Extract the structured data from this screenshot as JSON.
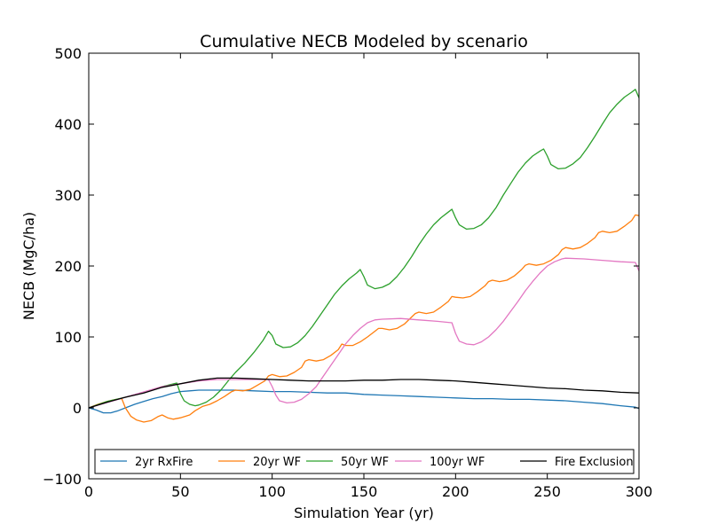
{
  "chart_data": {
    "type": "line",
    "title": "Cumulative NECB Modeled by scenario",
    "xlabel": "Simulation Year (yr)",
    "ylabel": "NECB (MgC/ha)",
    "xlim": [
      0,
      300
    ],
    "ylim": [
      -100,
      500
    ],
    "xticks": [
      "0",
      "50",
      "100",
      "150",
      "200",
      "250",
      "300"
    ],
    "yticks": [
      "−100",
      "0",
      "100",
      "200",
      "300",
      "400",
      "500"
    ],
    "grid": false,
    "legend_position": "bottom",
    "series": [
      {
        "name": "2yr RxFire",
        "color": "#1f77b4",
        "points": [
          [
            0,
            0
          ],
          [
            4,
            -3
          ],
          [
            8,
            -7
          ],
          [
            12,
            -7
          ],
          [
            16,
            -4
          ],
          [
            20,
            0
          ],
          [
            25,
            5
          ],
          [
            30,
            9
          ],
          [
            35,
            13
          ],
          [
            40,
            16
          ],
          [
            45,
            20
          ],
          [
            50,
            23
          ],
          [
            55,
            24
          ],
          [
            60,
            25
          ],
          [
            70,
            25
          ],
          [
            80,
            25
          ],
          [
            90,
            24
          ],
          [
            100,
            23
          ],
          [
            110,
            23
          ],
          [
            120,
            22
          ],
          [
            130,
            21
          ],
          [
            140,
            21
          ],
          [
            150,
            19
          ],
          [
            160,
            18
          ],
          [
            170,
            17
          ],
          [
            180,
            16
          ],
          [
            190,
            15
          ],
          [
            200,
            14
          ],
          [
            210,
            13
          ],
          [
            220,
            13
          ],
          [
            230,
            12
          ],
          [
            240,
            12
          ],
          [
            250,
            11
          ],
          [
            260,
            10
          ],
          [
            270,
            8
          ],
          [
            280,
            6
          ],
          [
            290,
            3
          ],
          [
            298,
            1
          ],
          [
            300,
            -1
          ]
        ]
      },
      {
        "name": "20yr WF",
        "color": "#ff7f0e",
        "points": [
          [
            0,
            0
          ],
          [
            5,
            5
          ],
          [
            10,
            9
          ],
          [
            15,
            12
          ],
          [
            18,
            13
          ],
          [
            20,
            0
          ],
          [
            23,
            -12
          ],
          [
            26,
            -17
          ],
          [
            30,
            -20
          ],
          [
            34,
            -18
          ],
          [
            38,
            -12
          ],
          [
            40,
            -10
          ],
          [
            43,
            -14
          ],
          [
            46,
            -16
          ],
          [
            50,
            -14
          ],
          [
            55,
            -10
          ],
          [
            58,
            -4
          ],
          [
            62,
            2
          ],
          [
            66,
            5
          ],
          [
            70,
            10
          ],
          [
            74,
            16
          ],
          [
            78,
            23
          ],
          [
            80,
            25
          ],
          [
            84,
            24
          ],
          [
            88,
            26
          ],
          [
            92,
            32
          ],
          [
            96,
            38
          ],
          [
            98,
            45
          ],
          [
            100,
            47
          ],
          [
            104,
            44
          ],
          [
            108,
            45
          ],
          [
            112,
            50
          ],
          [
            116,
            57
          ],
          [
            118,
            66
          ],
          [
            120,
            68
          ],
          [
            124,
            66
          ],
          [
            128,
            68
          ],
          [
            132,
            74
          ],
          [
            136,
            82
          ],
          [
            138,
            90
          ],
          [
            140,
            88
          ],
          [
            144,
            88
          ],
          [
            148,
            93
          ],
          [
            152,
            100
          ],
          [
            156,
            108
          ],
          [
            158,
            112
          ],
          [
            160,
            112
          ],
          [
            164,
            110
          ],
          [
            168,
            112
          ],
          [
            172,
            118
          ],
          [
            176,
            128
          ],
          [
            178,
            133
          ],
          [
            180,
            135
          ],
          [
            184,
            133
          ],
          [
            188,
            135
          ],
          [
            192,
            142
          ],
          [
            196,
            150
          ],
          [
            198,
            157
          ],
          [
            200,
            156
          ],
          [
            204,
            155
          ],
          [
            208,
            157
          ],
          [
            212,
            164
          ],
          [
            216,
            172
          ],
          [
            218,
            178
          ],
          [
            220,
            180
          ],
          [
            224,
            178
          ],
          [
            228,
            180
          ],
          [
            232,
            186
          ],
          [
            236,
            195
          ],
          [
            238,
            201
          ],
          [
            240,
            203
          ],
          [
            244,
            201
          ],
          [
            248,
            203
          ],
          [
            252,
            208
          ],
          [
            256,
            216
          ],
          [
            258,
            223
          ],
          [
            260,
            226
          ],
          [
            264,
            224
          ],
          [
            268,
            226
          ],
          [
            272,
            232
          ],
          [
            276,
            240
          ],
          [
            278,
            247
          ],
          [
            280,
            249
          ],
          [
            284,
            247
          ],
          [
            288,
            249
          ],
          [
            292,
            256
          ],
          [
            296,
            264
          ],
          [
            298,
            272
          ],
          [
            300,
            271
          ]
        ]
      },
      {
        "name": "50yr WF",
        "color": "#2ca02c",
        "points": [
          [
            0,
            0
          ],
          [
            10,
            9
          ],
          [
            20,
            15
          ],
          [
            30,
            22
          ],
          [
            40,
            30
          ],
          [
            48,
            35
          ],
          [
            50,
            20
          ],
          [
            52,
            10
          ],
          [
            55,
            5
          ],
          [
            58,
            3
          ],
          [
            60,
            4
          ],
          [
            64,
            8
          ],
          [
            68,
            15
          ],
          [
            72,
            25
          ],
          [
            76,
            38
          ],
          [
            80,
            50
          ],
          [
            85,
            63
          ],
          [
            90,
            78
          ],
          [
            95,
            95
          ],
          [
            98,
            108
          ],
          [
            100,
            102
          ],
          [
            102,
            90
          ],
          [
            106,
            85
          ],
          [
            110,
            86
          ],
          [
            114,
            92
          ],
          [
            118,
            102
          ],
          [
            122,
            115
          ],
          [
            126,
            130
          ],
          [
            130,
            145
          ],
          [
            134,
            160
          ],
          [
            138,
            172
          ],
          [
            142,
            182
          ],
          [
            146,
            190
          ],
          [
            148,
            195
          ],
          [
            150,
            185
          ],
          [
            152,
            173
          ],
          [
            156,
            168
          ],
          [
            160,
            170
          ],
          [
            164,
            175
          ],
          [
            168,
            185
          ],
          [
            172,
            198
          ],
          [
            176,
            213
          ],
          [
            180,
            230
          ],
          [
            184,
            245
          ],
          [
            188,
            258
          ],
          [
            192,
            268
          ],
          [
            196,
            276
          ],
          [
            198,
            280
          ],
          [
            200,
            268
          ],
          [
            202,
            258
          ],
          [
            206,
            252
          ],
          [
            210,
            253
          ],
          [
            214,
            258
          ],
          [
            218,
            268
          ],
          [
            222,
            282
          ],
          [
            226,
            300
          ],
          [
            230,
            316
          ],
          [
            234,
            332
          ],
          [
            238,
            345
          ],
          [
            242,
            355
          ],
          [
            246,
            362
          ],
          [
            248,
            365
          ],
          [
            250,
            355
          ],
          [
            252,
            343
          ],
          [
            256,
            337
          ],
          [
            260,
            338
          ],
          [
            264,
            344
          ],
          [
            268,
            353
          ],
          [
            272,
            367
          ],
          [
            276,
            383
          ],
          [
            280,
            400
          ],
          [
            284,
            416
          ],
          [
            288,
            428
          ],
          [
            292,
            438
          ],
          [
            296,
            445
          ],
          [
            298,
            449
          ],
          [
            300,
            437
          ]
        ]
      },
      {
        "name": "100yr WF",
        "color": "#e377c2",
        "points": [
          [
            0,
            0
          ],
          [
            20,
            15
          ],
          [
            40,
            30
          ],
          [
            60,
            38
          ],
          [
            70,
            40
          ],
          [
            80,
            40
          ],
          [
            90,
            40
          ],
          [
            98,
            40
          ],
          [
            100,
            30
          ],
          [
            102,
            18
          ],
          [
            104,
            10
          ],
          [
            108,
            7
          ],
          [
            112,
            8
          ],
          [
            116,
            12
          ],
          [
            120,
            20
          ],
          [
            124,
            30
          ],
          [
            128,
            45
          ],
          [
            132,
            60
          ],
          [
            136,
            75
          ],
          [
            140,
            90
          ],
          [
            144,
            102
          ],
          [
            148,
            112
          ],
          [
            152,
            120
          ],
          [
            156,
            124
          ],
          [
            160,
            125
          ],
          [
            170,
            126
          ],
          [
            180,
            124
          ],
          [
            190,
            122
          ],
          [
            198,
            120
          ],
          [
            200,
            105
          ],
          [
            202,
            94
          ],
          [
            206,
            90
          ],
          [
            210,
            89
          ],
          [
            214,
            93
          ],
          [
            218,
            100
          ],
          [
            222,
            110
          ],
          [
            226,
            122
          ],
          [
            230,
            136
          ],
          [
            234,
            150
          ],
          [
            238,
            165
          ],
          [
            242,
            178
          ],
          [
            246,
            190
          ],
          [
            250,
            200
          ],
          [
            254,
            206
          ],
          [
            258,
            210
          ],
          [
            260,
            211
          ],
          [
            270,
            210
          ],
          [
            280,
            208
          ],
          [
            290,
            206
          ],
          [
            298,
            205
          ],
          [
            300,
            193
          ]
        ]
      },
      {
        "name": "Fire Exclusion",
        "color": "#000000",
        "points": [
          [
            0,
            0
          ],
          [
            10,
            8
          ],
          [
            20,
            15
          ],
          [
            30,
            21
          ],
          [
            40,
            29
          ],
          [
            50,
            34
          ],
          [
            60,
            39
          ],
          [
            70,
            42
          ],
          [
            80,
            42
          ],
          [
            90,
            41
          ],
          [
            100,
            40
          ],
          [
            110,
            39
          ],
          [
            120,
            38
          ],
          [
            130,
            38
          ],
          [
            140,
            38
          ],
          [
            150,
            39
          ],
          [
            160,
            39
          ],
          [
            170,
            40
          ],
          [
            180,
            40
          ],
          [
            190,
            39
          ],
          [
            200,
            38
          ],
          [
            210,
            36
          ],
          [
            220,
            34
          ],
          [
            230,
            32
          ],
          [
            240,
            30
          ],
          [
            250,
            28
          ],
          [
            260,
            27
          ],
          [
            270,
            25
          ],
          [
            280,
            24
          ],
          [
            290,
            22
          ],
          [
            300,
            21
          ]
        ]
      }
    ]
  }
}
